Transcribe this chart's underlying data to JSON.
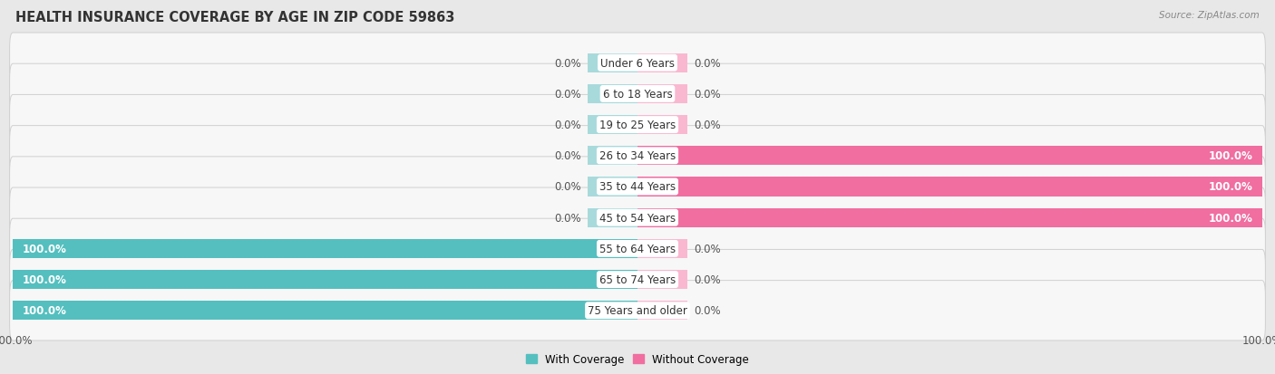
{
  "title": "HEALTH INSURANCE COVERAGE BY AGE IN ZIP CODE 59863",
  "source": "Source: ZipAtlas.com",
  "categories": [
    "Under 6 Years",
    "6 to 18 Years",
    "19 to 25 Years",
    "26 to 34 Years",
    "35 to 44 Years",
    "45 to 54 Years",
    "55 to 64 Years",
    "65 to 74 Years",
    "75 Years and older"
  ],
  "with_coverage": [
    0.0,
    0.0,
    0.0,
    0.0,
    0.0,
    0.0,
    100.0,
    100.0,
    100.0
  ],
  "without_coverage": [
    0.0,
    0.0,
    0.0,
    100.0,
    100.0,
    100.0,
    0.0,
    0.0,
    0.0
  ],
  "color_with": "#55BFBF",
  "color_without": "#F06EA0",
  "color_with_zero": "#A8DADC",
  "color_without_zero": "#F9B8D0",
  "bg_color": "#e8e8e8",
  "row_bg": "#f7f7f7",
  "row_edge": "#d0d0d0",
  "legend_with": "With Coverage",
  "legend_without": "Without Coverage",
  "bar_height": 0.62,
  "title_fontsize": 10.5,
  "label_fontsize": 8.5,
  "category_fontsize": 8.5,
  "axis_label_fontsize": 8.5,
  "stub_size": 8.0,
  "max_val": 100.0
}
